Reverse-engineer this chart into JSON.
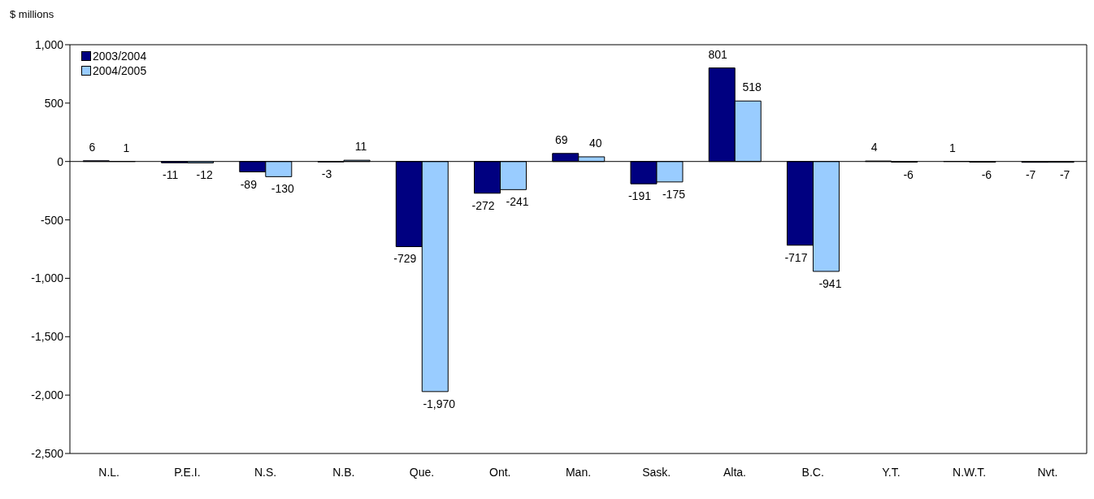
{
  "chart_data": {
    "type": "bar",
    "ylabel": "$ millions",
    "categories": [
      "N.L.",
      "P.E.I.",
      "N.S.",
      "N.B.",
      "Que.",
      "Ont.",
      "Man.",
      "Sask.",
      "Alta.",
      "B.C.",
      "Y.T.",
      "N.W.T.",
      "Nvt."
    ],
    "series": [
      {
        "name": "2003/2004",
        "color": "#000080",
        "values": [
          6,
          -11,
          -89,
          -3,
          -729,
          -272,
          69,
          -191,
          801,
          -717,
          4,
          1,
          -7
        ],
        "value_labels": [
          "6",
          "-11",
          "-89",
          "-3",
          "-729",
          "-272",
          "69",
          "-191",
          "801",
          "-717",
          "4",
          "1",
          "-7"
        ]
      },
      {
        "name": "2004/2005",
        "color": "#99ccff",
        "values": [
          1,
          -12,
          -130,
          11,
          -1970,
          -241,
          40,
          -175,
          518,
          -941,
          -6,
          -6,
          -7
        ],
        "value_labels": [
          "1",
          "-12",
          "-130",
          "11",
          "-1,970",
          "-241",
          "40",
          "-175",
          "518",
          "-941",
          "-6",
          "-6",
          "-7"
        ]
      }
    ],
    "ylim": [
      -2500,
      1000
    ],
    "yticks": [
      {
        "value": -2500,
        "label": "-2,500"
      },
      {
        "value": -2000,
        "label": "-2,000"
      },
      {
        "value": -1500,
        "label": "-1,500"
      },
      {
        "value": -1000,
        "label": "-1,000"
      },
      -500,
      0,
      500,
      {
        "value": 1000,
        "label": "1,000"
      }
    ],
    "legend": "top left"
  }
}
